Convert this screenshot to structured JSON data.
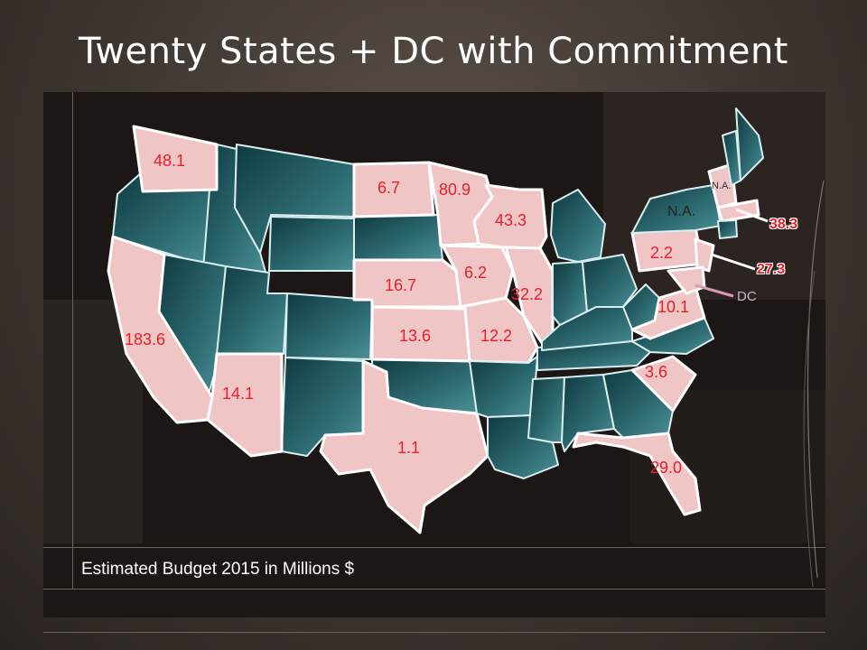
{
  "title": "Twenty States +  DC with Commitment",
  "caption": "Estimated Budget 2015 in Millions $",
  "colors": {
    "committed_state": "#f0c5c5",
    "other_state": "#2e6b72",
    "value_text": "#e8202a",
    "background": "#3e3631"
  },
  "labels": {
    "wa": "48.1",
    "ca": "183.6",
    "az": "14.1",
    "tx": "1.1",
    "sd": "6.7",
    "mn": "80.9",
    "wi": "43.3",
    "ne": "16.7",
    "ia": "6.2",
    "il": "32.2",
    "ks": "13.6",
    "mo": "12.2",
    "pa": "2.2",
    "va": "10.1",
    "sc": "3.6",
    "fl": "29.0",
    "ny": "N.A.",
    "vt": "N.A.",
    "ma": "38.3",
    "nj": "27.3",
    "dc": "DC"
  }
}
